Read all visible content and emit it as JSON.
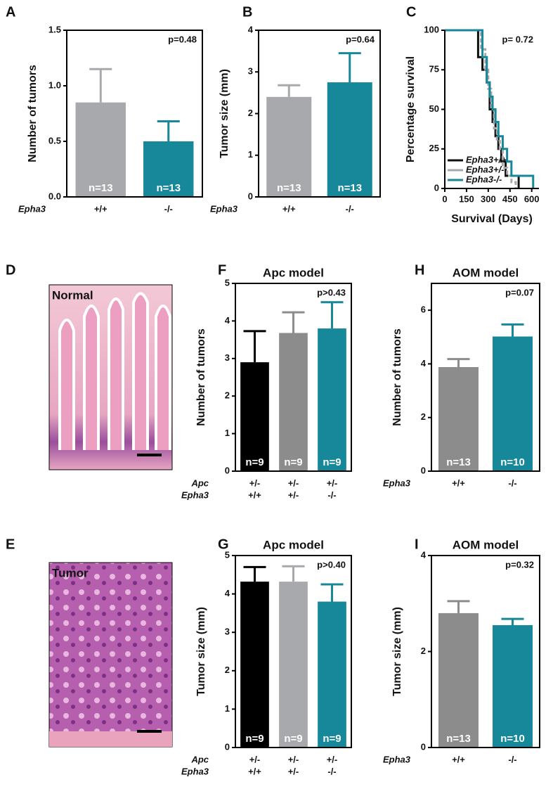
{
  "chart_data": [
    {
      "type": "bar",
      "panel": "A",
      "ylabel": "Number of tumors",
      "categories": [
        "+/+",
        "-/-"
      ],
      "category_label": "Epha3",
      "values": [
        0.85,
        0.5
      ],
      "errors": [
        0.3,
        0.18
      ],
      "colors": [
        "#a7a9ac",
        "#17879a"
      ],
      "n_labels": [
        "n=13",
        "n=13"
      ],
      "annotation": "p=0.48",
      "ylim": [
        0,
        1.5
      ],
      "yticks": [
        {
          "value": 0,
          "label": "0.0"
        },
        {
          "value": 0.5,
          "label": "0.5"
        },
        {
          "value": 1,
          "label": "1.0"
        },
        {
          "value": 1.5,
          "label": "1.5"
        }
      ]
    },
    {
      "type": "bar",
      "panel": "B",
      "ylabel": "Tumor size (mm)",
      "categories": [
        "+/+",
        "-/-"
      ],
      "category_label": "Epha3",
      "values": [
        2.4,
        2.75
      ],
      "errors": [
        0.28,
        0.7
      ],
      "colors": [
        "#a7a9ac",
        "#17879a"
      ],
      "n_labels": [
        "n=13",
        "n=13"
      ],
      "annotation": "p=0.64",
      "ylim": [
        0,
        4
      ],
      "yticks": [
        0,
        1,
        2,
        3,
        4
      ]
    },
    {
      "type": "step",
      "panel": "C",
      "xlabel": "Survival (Days)",
      "ylabel": "Percentage survival",
      "annotation": "p= 0.72",
      "xlim": [
        0,
        650
      ],
      "xticks": [
        0,
        150,
        300,
        450,
        600
      ],
      "ylim": [
        0,
        100
      ],
      "yticks": [
        0,
        25,
        50,
        75,
        100
      ],
      "legend": "lower left",
      "series": [
        {
          "name": "Epha3+/+",
          "color": "#111111",
          "x": [
            0,
            230,
            260,
            290,
            310,
            330,
            350,
            370,
            390,
            420,
            450,
            480,
            510
          ],
          "values": [
            100,
            83,
            75,
            67,
            50,
            42,
            33,
            25,
            17,
            8,
            8,
            8,
            0
          ]
        },
        {
          "name": "Epha3+/-",
          "color": "#a7a9ac",
          "x": [
            0,
            250,
            280,
            300,
            320,
            340,
            360,
            380,
            400,
            430,
            460,
            490
          ],
          "values": [
            100,
            88,
            75,
            63,
            50,
            38,
            30,
            25,
            13,
            8,
            4,
            0
          ]
        },
        {
          "name": "Epha3-/-",
          "color": "#17879a",
          "x": [
            0,
            170,
            260,
            290,
            310,
            330,
            350,
            370,
            400,
            430,
            460,
            500,
            560,
            610
          ],
          "values": [
            100,
            100,
            83,
            67,
            58,
            50,
            42,
            33,
            25,
            17,
            8,
            8,
            8,
            0
          ]
        }
      ]
    },
    {
      "type": "bar",
      "panel": "F",
      "title": "Apc model",
      "ylabel": "Number of tumors",
      "categories": [
        [
          "+/-",
          "+/+"
        ],
        [
          "+/-",
          "+/-"
        ],
        [
          "+/-",
          "-/-"
        ]
      ],
      "category_label": [
        "Apc",
        "Epha3"
      ],
      "values": [
        2.9,
        3.68,
        3.8
      ],
      "errors": [
        0.83,
        0.55,
        0.7
      ],
      "colors": [
        "#000000",
        "#8c8c8c",
        "#17879a"
      ],
      "n_labels": [
        "n=9",
        "n=9",
        "n=9"
      ],
      "annotation": "p>0.43",
      "ylim": [
        0,
        5
      ],
      "yticks": [
        0,
        1,
        2,
        3,
        4,
        5
      ]
    },
    {
      "type": "bar",
      "panel": "G",
      "title": "Apc model",
      "ylabel": "Tumor size (mm)",
      "categories": [
        [
          "+/-",
          "+/+"
        ],
        [
          "+/-",
          "+/-"
        ],
        [
          "+/-",
          "-/-"
        ]
      ],
      "category_label": [
        "Apc",
        "Epha3"
      ],
      "values": [
        4.32,
        4.32,
        3.8
      ],
      "errors": [
        0.38,
        0.4,
        0.45
      ],
      "colors": [
        "#000000",
        "#a7a9ac",
        "#17879a"
      ],
      "n_labels": [
        "n=9",
        "n=9",
        "n=9"
      ],
      "annotation": "p>0.40",
      "ylim": [
        0,
        5
      ],
      "yticks": [
        0,
        1,
        2,
        3,
        4,
        5
      ]
    },
    {
      "type": "bar",
      "panel": "H",
      "title": "AOM model",
      "ylabel": "Number of tumors",
      "categories": [
        "+/+",
        "-/-"
      ],
      "category_label": "Epha3",
      "values": [
        3.88,
        5.02
      ],
      "errors": [
        0.3,
        0.45
      ],
      "colors": [
        "#8c8c8c",
        "#17879a"
      ],
      "n_labels": [
        "n=13",
        "n=10"
      ],
      "annotation": "p=0.07",
      "ylim": [
        0,
        7
      ],
      "yticks": [
        0,
        2,
        4,
        6
      ]
    },
    {
      "type": "bar",
      "panel": "I",
      "title": "AOM model",
      "ylabel": "Tumor size (mm)",
      "categories": [
        "+/+",
        "-/-"
      ],
      "category_label": "Epha3",
      "values": [
        2.8,
        2.55
      ],
      "errors": [
        0.25,
        0.13
      ],
      "colors": [
        "#8c8c8c",
        "#17879a"
      ],
      "n_labels": [
        "n=13",
        "n=10"
      ],
      "annotation": "p=0.32",
      "ylim": [
        0,
        4
      ],
      "yticks": [
        0,
        2,
        4
      ]
    }
  ],
  "images": [
    {
      "panel": "D",
      "label": "Normal"
    },
    {
      "panel": "E",
      "label": "Tumor"
    }
  ]
}
